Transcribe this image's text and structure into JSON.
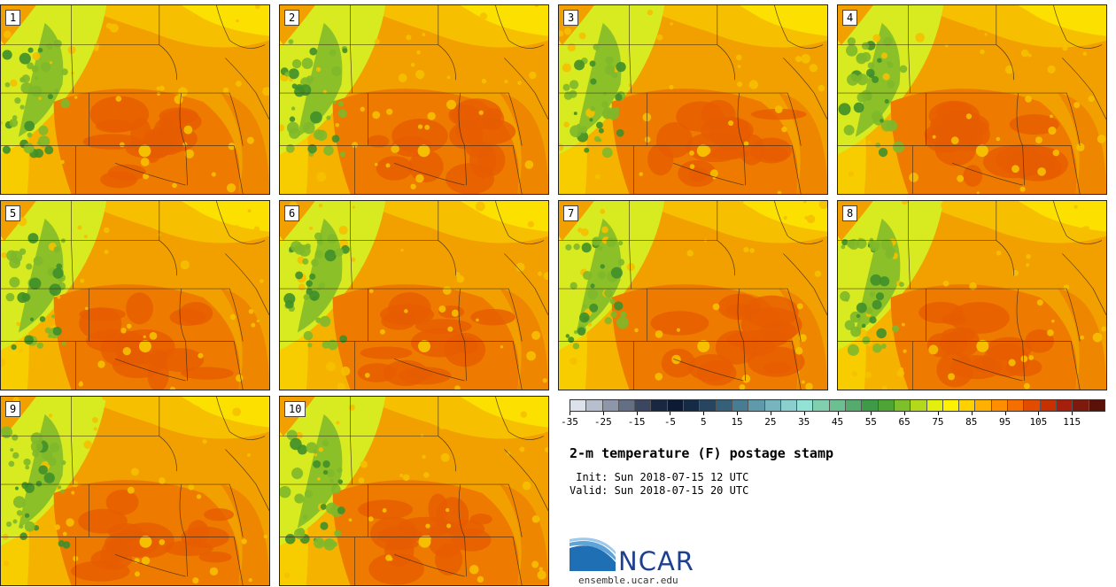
{
  "members": [
    {
      "label": "1"
    },
    {
      "label": "2"
    },
    {
      "label": "3"
    },
    {
      "label": "4"
    },
    {
      "label": "5"
    },
    {
      "label": "6"
    },
    {
      "label": "7"
    },
    {
      "label": "8"
    },
    {
      "label": "9"
    },
    {
      "label": "10"
    }
  ],
  "colorbar": {
    "colors": [
      "#dde2ea",
      "#b8bfcc",
      "#8e97aa",
      "#646f86",
      "#3b4661",
      "#1a2742",
      "#0c1a33",
      "#152a45",
      "#274560",
      "#35607a",
      "#477c92",
      "#5f9aab",
      "#76b5c0",
      "#8ccfcf",
      "#93e2d6",
      "#80d0b0",
      "#6cbf90",
      "#55ab6e",
      "#3f9a48",
      "#4ea536",
      "#7ec02a",
      "#b4d81c",
      "#e3ef0c",
      "#fff200",
      "#ffd100",
      "#ffb000",
      "#ff8f00",
      "#f56e00",
      "#e14c00",
      "#c73000",
      "#a61f0c",
      "#7d1a0e",
      "#5a1208"
    ],
    "tick_labels": [
      "-35",
      "-25",
      "-15",
      "-5",
      "5",
      "15",
      "25",
      "35",
      "45",
      "55",
      "65",
      "75",
      "85",
      "95",
      "105",
      "115"
    ],
    "min": -35,
    "max": 125,
    "step": 5
  },
  "title": "2-m temperature (F) postage stamp",
  "init_line": " Init: Sun 2018-07-15 12 UTC",
  "valid_line": "Valid: Sun 2018-07-15 20 UTC",
  "logo": {
    "name": "NCAR",
    "url": "ensemble.ucar.edu",
    "colors": [
      "#1f6fb5",
      "#5fa3d8",
      "#9fc9ea"
    ]
  },
  "map_palette": {
    "background": "#f2a000",
    "warm": "#ee7b00",
    "hot": "#e65d00",
    "mild": "#f6c000",
    "cool": "#fbe000",
    "yellowgreen": "#d8ea20",
    "green": "#7eb82a",
    "darkgreen": "#3f8f2a",
    "border": "#3a2a1a"
  }
}
